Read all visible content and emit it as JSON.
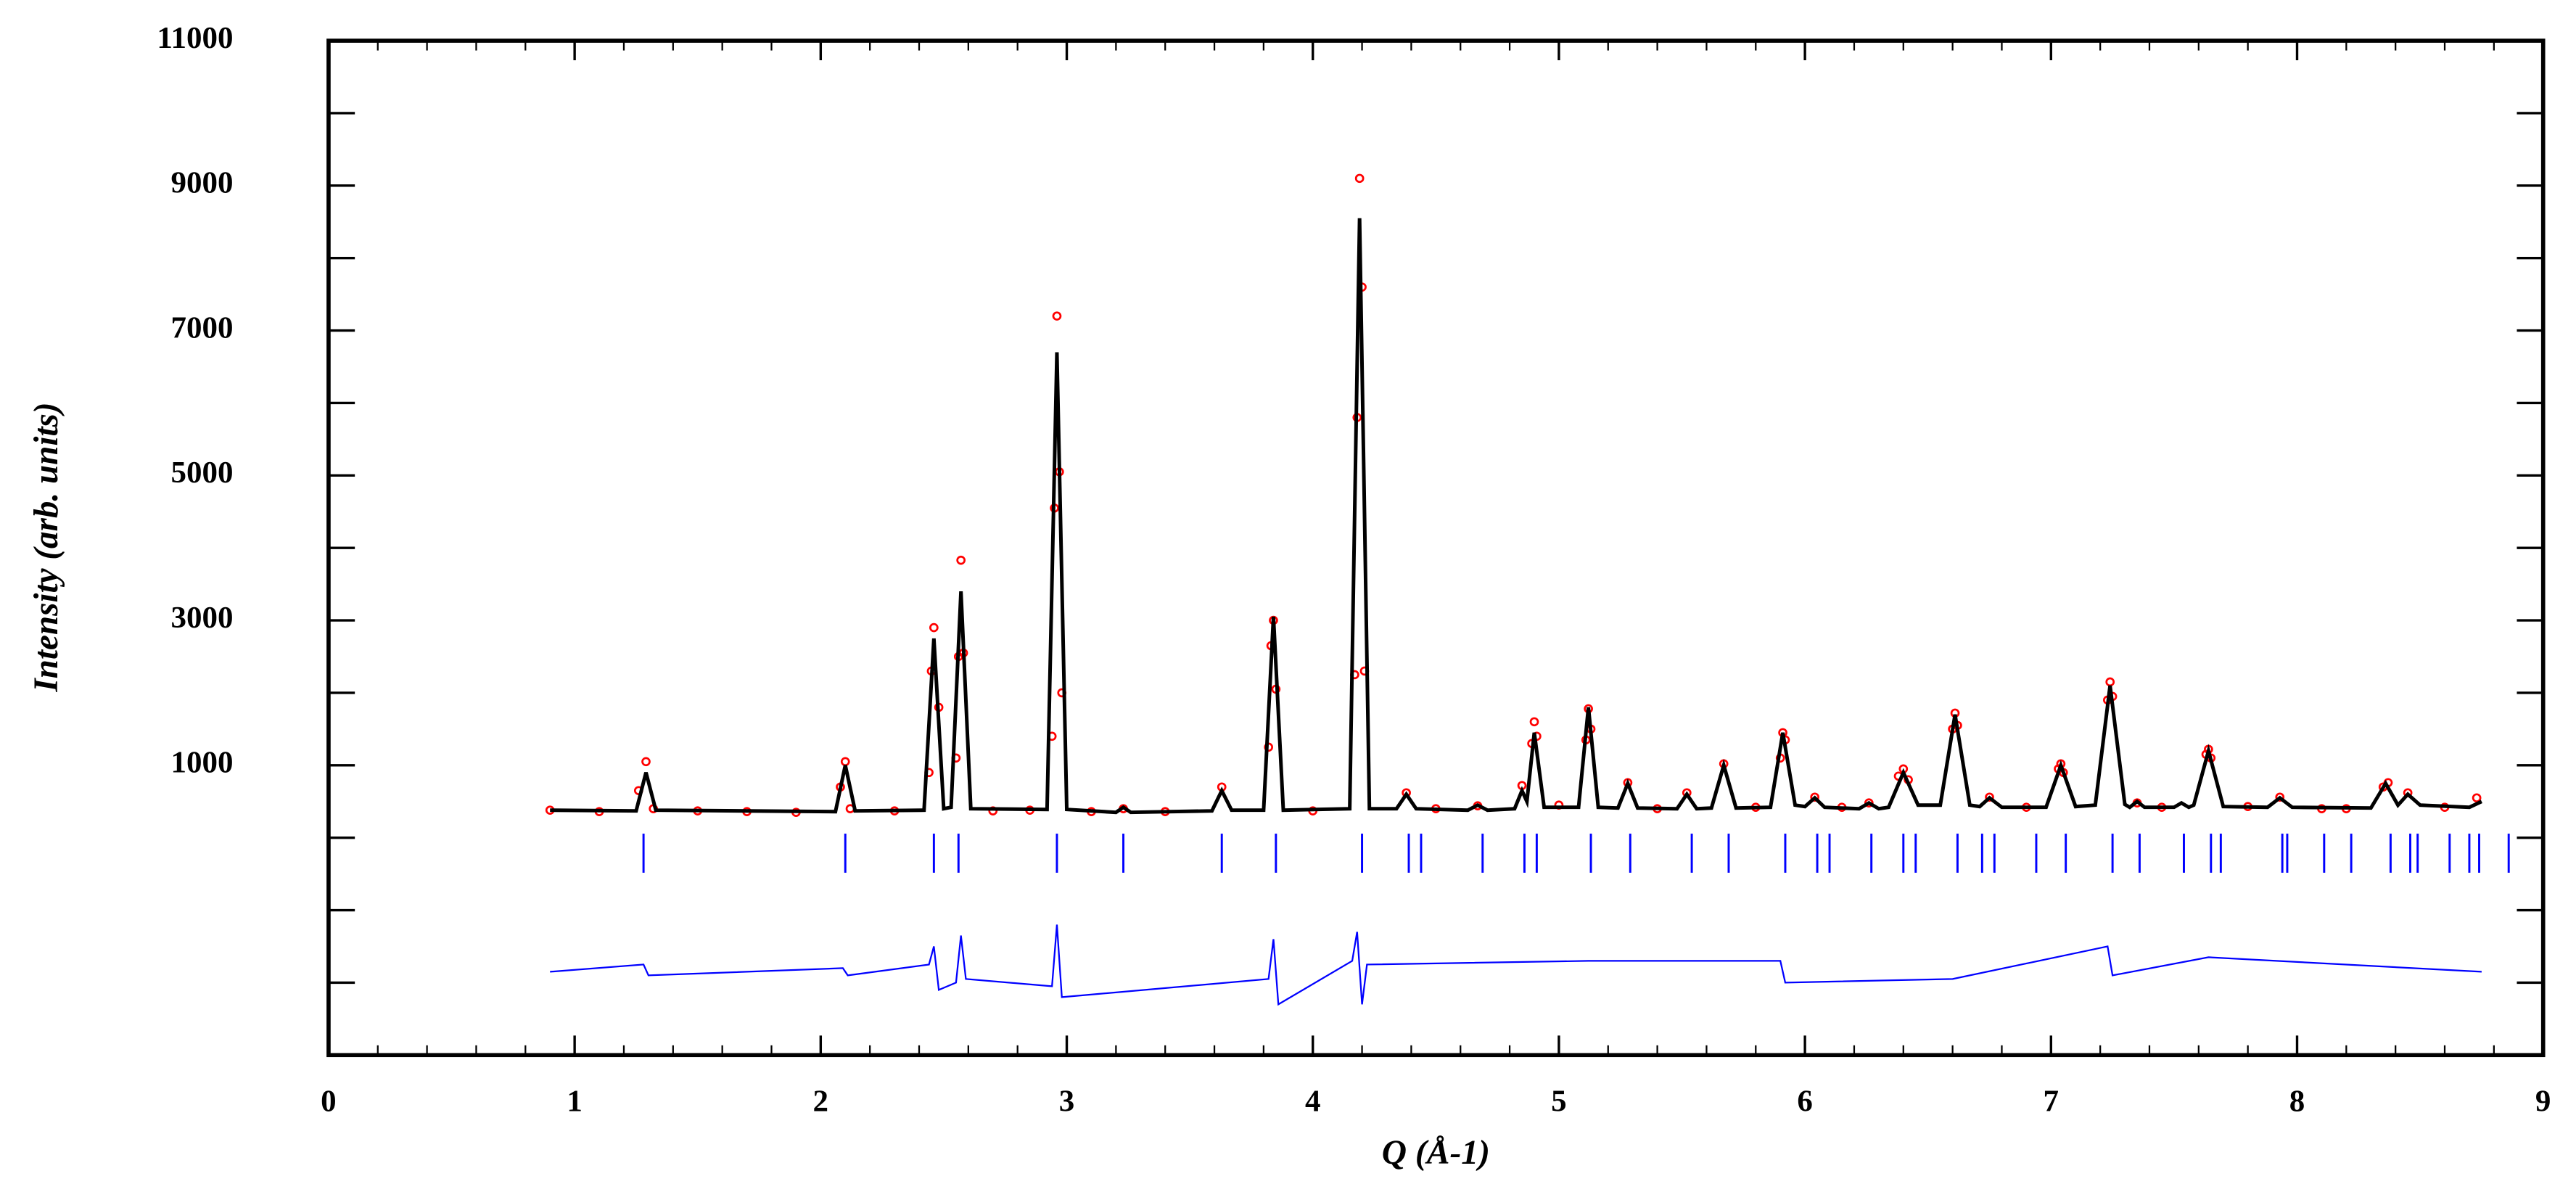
{
  "chart_data": {
    "type": "rietveld",
    "xlabel": "Q (Å-1)",
    "ylabel": "Intensity (arb. units)",
    "xlim": [
      0,
      9
    ],
    "ylim": [
      -3000,
      11000
    ],
    "xticks": [
      0,
      1,
      2,
      3,
      4,
      5,
      6,
      7,
      8,
      9
    ],
    "yticks": [
      1000,
      3000,
      5000,
      7000,
      9000,
      11000
    ],
    "yminorticks": [
      -2000,
      -1000,
      0,
      2000,
      4000,
      6000,
      8000,
      10000
    ],
    "xminorticks": [
      0.2,
      0.4,
      0.6,
      0.8,
      1.2,
      1.4,
      1.6,
      1.8,
      2.2,
      2.4,
      2.6,
      2.8,
      3.2,
      3.4,
      3.6,
      3.8,
      4.2,
      4.4,
      4.6,
      4.8,
      5.2,
      5.4,
      5.6,
      5.8,
      6.2,
      6.4,
      6.6,
      6.8,
      7.2,
      7.4,
      7.6,
      7.8,
      8.2,
      8.4,
      8.6,
      8.8
    ],
    "series": [
      {
        "style": "markers",
        "color": "#ff0000",
        "x": [
          0.9,
          1.1,
          1.26,
          1.29,
          1.32,
          1.5,
          1.7,
          1.9,
          2.08,
          2.1,
          2.12,
          2.3,
          2.44,
          2.45,
          2.46,
          2.48,
          2.55,
          2.56,
          2.57,
          2.58,
          2.7,
          2.85,
          2.94,
          2.95,
          2.96,
          2.97,
          2.98,
          3.1,
          3.23,
          3.4,
          3.63,
          3.82,
          3.83,
          3.84,
          3.85,
          4.0,
          4.17,
          4.18,
          4.19,
          4.2,
          4.21,
          4.38,
          4.5,
          4.67,
          4.85,
          4.89,
          4.9,
          4.91,
          5.0,
          5.11,
          5.12,
          5.13,
          5.28,
          5.4,
          5.52,
          5.67,
          5.8,
          5.9,
          5.91,
          5.92,
          6.04,
          6.15,
          6.26,
          6.38,
          6.4,
          6.42,
          6.6,
          6.61,
          6.62,
          6.75,
          6.9,
          7.03,
          7.04,
          7.05,
          7.23,
          7.24,
          7.25,
          7.35,
          7.45,
          7.63,
          7.64,
          7.65,
          7.8,
          7.93,
          8.1,
          8.2,
          8.35,
          8.37,
          8.45,
          8.6,
          8.73
        ],
        "values": [
          380,
          360,
          650,
          1050,
          400,
          370,
          360,
          350,
          700,
          1050,
          400,
          370,
          900,
          2300,
          2900,
          1800,
          1100,
          2500,
          3830,
          2550,
          370,
          380,
          1400,
          4550,
          7200,
          5050,
          2000,
          360,
          400,
          360,
          700,
          1250,
          2650,
          3000,
          2050,
          370,
          2250,
          5800,
          9100,
          7600,
          2300,
          620,
          400,
          440,
          720,
          1300,
          1600,
          1400,
          450,
          1350,
          1780,
          1500,
          760,
          400,
          620,
          1020,
          420,
          1100,
          1450,
          1350,
          560,
          420,
          480,
          850,
          950,
          800,
          1500,
          1720,
          1550,
          560,
          420,
          950,
          1020,
          900,
          1900,
          2150,
          1950,
          480,
          420,
          1150,
          1220,
          1100,
          430,
          560,
          400,
          400,
          700,
          760,
          620,
          420,
          550
        ]
      },
      {
        "style": "line",
        "color": "#000000",
        "x": [
          0.9,
          1.25,
          1.29,
          1.33,
          2.06,
          2.1,
          2.14,
          2.42,
          2.46,
          2.5,
          2.53,
          2.57,
          2.61,
          2.92,
          2.96,
          3.0,
          3.2,
          3.23,
          3.26,
          3.59,
          3.63,
          3.67,
          3.8,
          3.84,
          3.88,
          4.15,
          4.19,
          4.23,
          4.34,
          4.38,
          4.42,
          4.63,
          4.67,
          4.71,
          4.82,
          4.85,
          4.87,
          4.9,
          4.94,
          5.08,
          5.12,
          5.16,
          5.24,
          5.28,
          5.32,
          5.48,
          5.52,
          5.56,
          5.62,
          5.67,
          5.72,
          5.86,
          5.91,
          5.96,
          6.0,
          6.04,
          6.08,
          6.22,
          6.26,
          6.3,
          6.34,
          6.4,
          6.46,
          6.55,
          6.61,
          6.67,
          6.71,
          6.75,
          6.8,
          6.98,
          7.04,
          7.1,
          7.18,
          7.24,
          7.3,
          7.32,
          7.35,
          7.38,
          7.5,
          7.53,
          7.56,
          7.58,
          7.64,
          7.7,
          7.88,
          7.93,
          7.98,
          8.3,
          8.36,
          8.41,
          8.45,
          8.5,
          8.7,
          8.75
        ],
        "values": [
          380,
          370,
          900,
          380,
          360,
          1000,
          370,
          380,
          2750,
          400,
          420,
          3400,
          400,
          390,
          6700,
          390,
          350,
          420,
          350,
          370,
          650,
          380,
          380,
          3050,
          380,
          400,
          8550,
          400,
          400,
          600,
          400,
          380,
          450,
          380,
          400,
          650,
          500,
          1450,
          420,
          420,
          1800,
          420,
          410,
          750,
          410,
          400,
          600,
          400,
          410,
          1000,
          410,
          420,
          1450,
          450,
          430,
          550,
          420,
          400,
          480,
          400,
          420,
          900,
          450,
          450,
          1700,
          450,
          430,
          550,
          420,
          420,
          1000,
          430,
          450,
          2100,
          460,
          420,
          500,
          420,
          420,
          480,
          420,
          450,
          1200,
          430,
          420,
          550,
          420,
          410,
          750,
          450,
          600,
          450,
          420,
          500
        ]
      },
      {
        "style": "line",
        "color": "#0000ff",
        "x": [
          0.9,
          1.28,
          1.3,
          2.09,
          2.11,
          2.44,
          2.46,
          2.48,
          2.55,
          2.57,
          2.59,
          2.94,
          2.96,
          2.98,
          3.82,
          3.84,
          3.86,
          4.16,
          4.18,
          4.2,
          4.22,
          5.12,
          5.9,
          5.92,
          6.6,
          7.23,
          7.25,
          7.64,
          8.75
        ],
        "values": [
          -1850,
          -1750,
          -1900,
          -1800,
          -1900,
          -1750,
          -1500,
          -2100,
          -2000,
          -1350,
          -1950,
          -2050,
          -1200,
          -2200,
          -1950,
          -1400,
          -2300,
          -1700,
          -1300,
          -2300,
          -1750,
          -1700,
          -1700,
          -2000,
          -1950,
          -1500,
          -1900,
          -1650,
          -1850
        ]
      }
    ],
    "reflections": {
      "color": "#0000ff",
      "positions": [
        1.28,
        2.1,
        2.46,
        2.56,
        2.96,
        3.23,
        3.63,
        3.85,
        4.2,
        4.39,
        4.44,
        4.69,
        4.86,
        4.91,
        5.13,
        5.29,
        5.54,
        5.69,
        5.92,
        6.05,
        6.1,
        6.27,
        6.4,
        6.45,
        6.62,
        6.72,
        6.77,
        6.94,
        7.06,
        7.25,
        7.36,
        7.54,
        7.65,
        7.69,
        7.94,
        7.96,
        8.11,
        8.22,
        8.38,
        8.46,
        8.49,
        8.62,
        8.7,
        8.74,
        8.86
      ]
    }
  }
}
